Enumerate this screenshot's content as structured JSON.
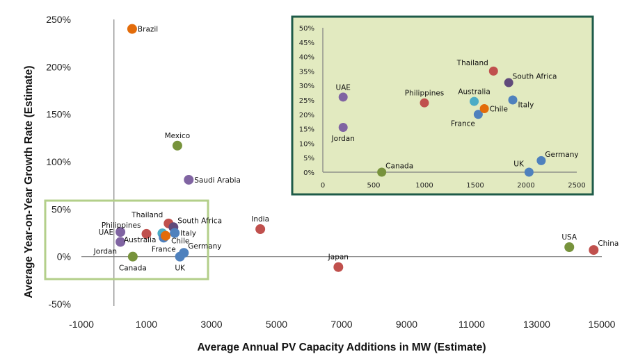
{
  "chart_data": [
    {
      "type": "scatter",
      "name": "main",
      "title": "",
      "xlabel": "Average Annual PV Capacity Additions in MW (Estimate)",
      "ylabel": "Average Year-on-Year Growth Rate (Estimate)",
      "xlim": [
        -1000,
        15000
      ],
      "ylim": [
        -50,
        250
      ],
      "xticks": [
        -1000,
        1000,
        3000,
        5000,
        7000,
        9000,
        11000,
        13000,
        15000
      ],
      "xtick_labels": [
        "-1000",
        "1000",
        "3000",
        "5000",
        "7000",
        "9000",
        "11000",
        "13000",
        "15000"
      ],
      "yticks": [
        -50,
        0,
        50,
        100,
        150,
        200,
        250
      ],
      "ytick_labels": [
        "-50%",
        "0%",
        "50%",
        "100%",
        "150%",
        "200%",
        "250%"
      ],
      "grid": false,
      "legend": "none",
      "points": [
        {
          "label": "Brazil",
          "x": 560,
          "y": 240,
          "color": "#e36c0a",
          "label_pos": "right"
        },
        {
          "label": "Mexico",
          "x": 1950,
          "y": 117,
          "color": "#77933c",
          "label_pos": "top"
        },
        {
          "label": "Saudi Arabia",
          "x": 2300,
          "y": 81,
          "color": "#8064a2",
          "label_pos": "right"
        },
        {
          "label": "India",
          "x": 4500,
          "y": 29,
          "color": "#c0504d",
          "label_pos": "top"
        },
        {
          "label": "Japan",
          "x": 6900,
          "y": -11,
          "color": "#c0504d",
          "label_pos": "top"
        },
        {
          "label": "USA",
          "x": 14000,
          "y": 10,
          "color": "#77933c",
          "label_pos": "top"
        },
        {
          "label": "China",
          "x": 14750,
          "y": 7,
          "color": "#c0504d",
          "label_pos": "topright"
        },
        {
          "label": "UAE",
          "x": 200,
          "y": 26,
          "color": "#8064a2",
          "label_pos": "left"
        },
        {
          "label": "Jordan",
          "x": 200,
          "y": 15.5,
          "color": "#8064a2",
          "label_pos": "bottomleft"
        },
        {
          "label": "Canada",
          "x": 580,
          "y": 0,
          "color": "#77933c",
          "label_pos": "bottom"
        },
        {
          "label": "Philippines",
          "x": 1000,
          "y": 24,
          "color": "#c0504d",
          "label_pos": "topleft"
        },
        {
          "label": "Australia",
          "x": 1490,
          "y": 24.5,
          "color": "#4bacc6",
          "label_pos": "bottomleft2"
        },
        {
          "label": "France",
          "x": 1530,
          "y": 20,
          "color": "#4f81bd",
          "label_pos": "bottom"
        },
        {
          "label": "Chile",
          "x": 1590,
          "y": 22,
          "color": "#e36c0a",
          "label_pos": "bottomright"
        },
        {
          "label": "Thailand",
          "x": 1680,
          "y": 35,
          "color": "#c0504d",
          "label_pos": "topleft"
        },
        {
          "label": "South Africa",
          "x": 1830,
          "y": 31,
          "color": "#604a7b",
          "label_pos": "topright"
        },
        {
          "label": "Italy",
          "x": 1870,
          "y": 25,
          "color": "#4f81bd",
          "label_pos": "right"
        },
        {
          "label": "UK",
          "x": 2030,
          "y": 0,
          "color": "#4f81bd",
          "label_pos": "bottom"
        },
        {
          "label": "Germany",
          "x": 2150,
          "y": 4,
          "color": "#4f81bd",
          "label_pos": "topright"
        }
      ]
    },
    {
      "type": "scatter",
      "name": "inset-zoom",
      "title": "",
      "xlabel": "",
      "ylabel": "",
      "xlim": [
        0,
        2500
      ],
      "ylim": [
        0,
        50
      ],
      "xticks": [
        0,
        500,
        1000,
        1500,
        2000,
        2500
      ],
      "xtick_labels": [
        "0",
        "500",
        "1000",
        "1500",
        "2000",
        "2500"
      ],
      "yticks": [
        0,
        5,
        10,
        15,
        20,
        25,
        30,
        35,
        40,
        45,
        50
      ],
      "ytick_labels": [
        "0%",
        "5%",
        "10%",
        "15%",
        "20%",
        "25%",
        "30%",
        "35%",
        "40%",
        "45%",
        "50%"
      ],
      "grid": false,
      "legend": "none",
      "points": [
        {
          "label": "UAE",
          "x": 200,
          "y": 26,
          "color": "#8064a2",
          "label_pos": "top"
        },
        {
          "label": "Jordan",
          "x": 200,
          "y": 15.5,
          "color": "#8064a2",
          "label_pos": "bottom"
        },
        {
          "label": "Canada",
          "x": 580,
          "y": 0,
          "color": "#77933c",
          "label_pos": "topright"
        },
        {
          "label": "Philippines",
          "x": 1000,
          "y": 24,
          "color": "#c0504d",
          "label_pos": "top"
        },
        {
          "label": "Australia",
          "x": 1490,
          "y": 24.5,
          "color": "#4bacc6",
          "label_pos": "top"
        },
        {
          "label": "France",
          "x": 1530,
          "y": 20,
          "color": "#4f81bd",
          "label_pos": "bottomleft"
        },
        {
          "label": "Chile",
          "x": 1590,
          "y": 22,
          "color": "#e36c0a",
          "label_pos": "right"
        },
        {
          "label": "Thailand",
          "x": 1680,
          "y": 35,
          "color": "#c0504d",
          "label_pos": "topleft"
        },
        {
          "label": "South Africa",
          "x": 1830,
          "y": 31,
          "color": "#604a7b",
          "label_pos": "topright"
        },
        {
          "label": "Italy",
          "x": 1870,
          "y": 25,
          "color": "#4f81bd",
          "label_pos": "bottomright"
        },
        {
          "label": "UK",
          "x": 2030,
          "y": 0,
          "color": "#4f81bd",
          "label_pos": "topleft"
        },
        {
          "label": "Germany",
          "x": 2150,
          "y": 4,
          "color": "#4f81bd",
          "label_pos": "topright"
        }
      ]
    }
  ],
  "annotations": {
    "highlight_box_color": "#b3cf8a",
    "inset_border_color": "#1e5b48",
    "inset_background": "#e2eac0"
  }
}
